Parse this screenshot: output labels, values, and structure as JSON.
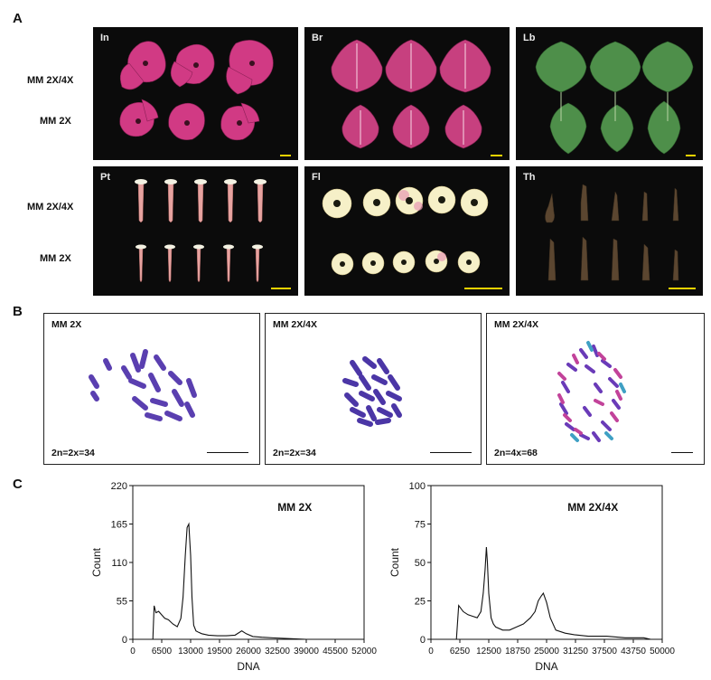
{
  "panel_letters": {
    "a": "A",
    "b": "B",
    "c": "C"
  },
  "row_labels": {
    "upper": "MM 2X/4X",
    "lower": "MM 2X"
  },
  "photo_panels": [
    {
      "tag": "In"
    },
    {
      "tag": "Br"
    },
    {
      "tag": "Lb"
    },
    {
      "tag": "Pt"
    },
    {
      "tag": "Fl"
    },
    {
      "tag": "Th"
    }
  ],
  "karyotypes": [
    {
      "title": "MM 2X",
      "count": "2n=2x=34"
    },
    {
      "title": "MM 2X/4X",
      "count": "2n=2x=34"
    },
    {
      "title": "MM 2X/4X",
      "count": "2n=4x=68"
    }
  ],
  "colors": {
    "scalebar": "#f2d300",
    "bract": "#d13a84",
    "leaf": "#4e9a4a",
    "chromosome": "#5a3fb0"
  },
  "chart_data": [
    {
      "type": "line",
      "title": "MM 2X",
      "xlabel": "DNA",
      "ylabel": "Count",
      "xlim": [
        0,
        52000
      ],
      "ylim": [
        0,
        220
      ],
      "xticks": [
        "0",
        "6500",
        "13000",
        "19500",
        "26000",
        "32500",
        "39000",
        "45500",
        "52000"
      ],
      "yticks": [
        "0",
        "55",
        "110",
        "165",
        "220"
      ],
      "x": [
        4500,
        4800,
        5200,
        5800,
        6500,
        7200,
        8000,
        9000,
        10000,
        10800,
        11300,
        11800,
        12200,
        12600,
        13000,
        13300,
        13700,
        14200,
        14800,
        15500,
        17000,
        19000,
        21000,
        23000,
        24500,
        25500,
        27000,
        29000,
        32000,
        35000,
        39000
      ],
      "y": [
        0,
        48,
        38,
        40,
        35,
        30,
        28,
        22,
        18,
        30,
        60,
        120,
        160,
        165,
        120,
        60,
        20,
        12,
        10,
        8,
        6,
        5,
        5,
        6,
        12,
        8,
        4,
        3,
        2,
        1,
        0
      ]
    },
    {
      "type": "line",
      "title": "MM 2X/4X",
      "xlabel": "DNA",
      "ylabel": "Count",
      "xlim": [
        0,
        50000
      ],
      "ylim": [
        0,
        100
      ],
      "xticks": [
        "0",
        "6250",
        "12500",
        "18750",
        "25000",
        "31250",
        "37500",
        "43750",
        "50000"
      ],
      "yticks": [
        "0",
        "25",
        "50",
        "75",
        "100"
      ],
      "x": [
        5500,
        6000,
        7000,
        8000,
        9000,
        10000,
        10800,
        11300,
        11700,
        12000,
        12200,
        12500,
        13000,
        13500,
        14000,
        15500,
        17000,
        18500,
        20000,
        21500,
        22500,
        23200,
        23800,
        24300,
        25000,
        25800,
        27000,
        29000,
        31000,
        34000,
        38000,
        42000,
        46000,
        47500
      ],
      "y": [
        0,
        22,
        18,
        16,
        15,
        14,
        18,
        30,
        45,
        60,
        50,
        30,
        14,
        10,
        8,
        6,
        6,
        8,
        10,
        14,
        18,
        25,
        28,
        30,
        24,
        14,
        6,
        4,
        3,
        2,
        2,
        1,
        1,
        0
      ]
    }
  ]
}
